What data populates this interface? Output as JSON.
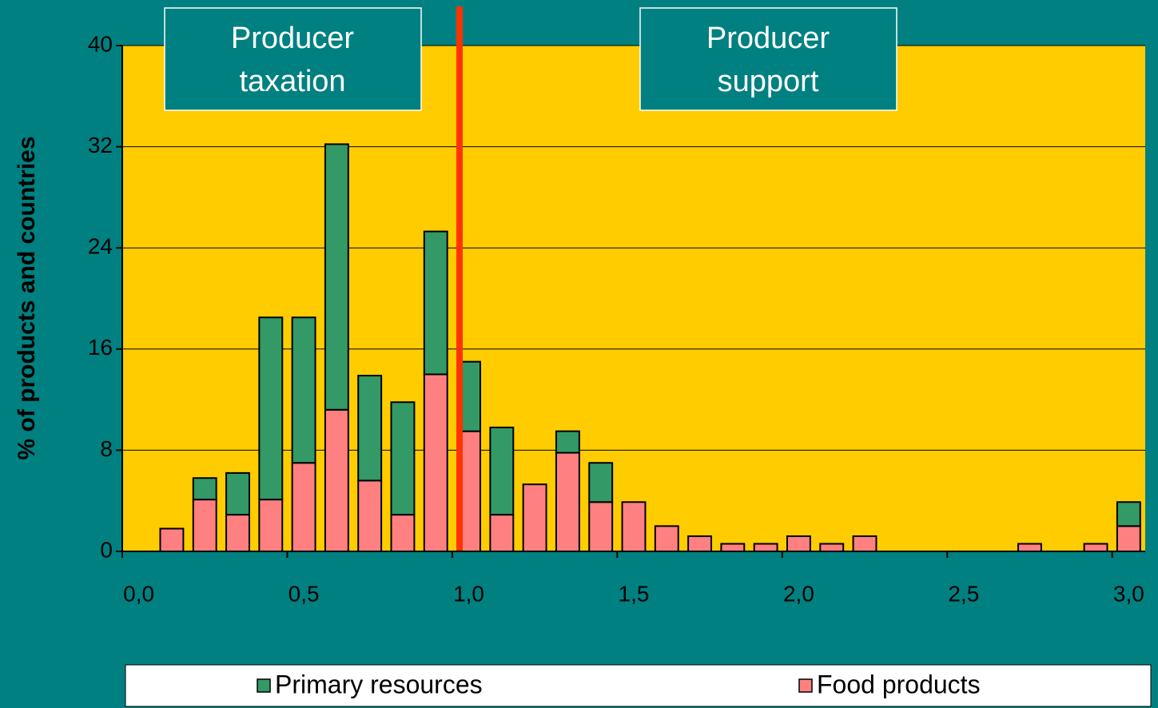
{
  "chart_data": {
    "type": "bar",
    "stacked": true,
    "y_label": "% of products and countries",
    "categories": [
      "0,0",
      null,
      null,
      null,
      null,
      "0,5",
      null,
      null,
      null,
      null,
      "1,0",
      null,
      null,
      null,
      null,
      "1,5",
      null,
      null,
      null,
      null,
      "2,0",
      null,
      null,
      null,
      null,
      "2,5",
      null,
      null,
      null,
      null,
      "3,0"
    ],
    "series": [
      {
        "name": "Food products",
        "color": "#ff8080",
        "values": [
          0,
          1.8,
          4.1,
          2.9,
          4.1,
          7.0,
          11.2,
          5.6,
          2.9,
          14.0,
          9.5,
          2.9,
          5.3,
          7.8,
          3.9,
          3.9,
          2.0,
          1.2,
          0.6,
          0.6,
          1.2,
          0.6,
          1.2,
          0,
          0,
          0,
          0,
          0.6,
          0,
          0.6,
          2.0
        ]
      },
      {
        "name": "Primary resources",
        "color": "#339966",
        "values": [
          0,
          0,
          1.7,
          3.3,
          14.4,
          11.5,
          21.0,
          8.3,
          8.9,
          11.3,
          5.5,
          6.9,
          0,
          1.7,
          3.1,
          0,
          0,
          0,
          0,
          0,
          0,
          0,
          0,
          0,
          0,
          0,
          0,
          0,
          0,
          0,
          1.9
        ]
      }
    ],
    "legend_order": [
      "Primary resources",
      "Food products"
    ],
    "annotations": [
      [
        "Producer",
        "taxation"
      ],
      [
        "Producer",
        "support"
      ]
    ],
    "ylim": [
      0,
      40
    ],
    "yticks": [
      0,
      8,
      16,
      24,
      32,
      40
    ],
    "grid": true,
    "plot_color": "#ffcc00",
    "divider_color": "#ff3300"
  }
}
